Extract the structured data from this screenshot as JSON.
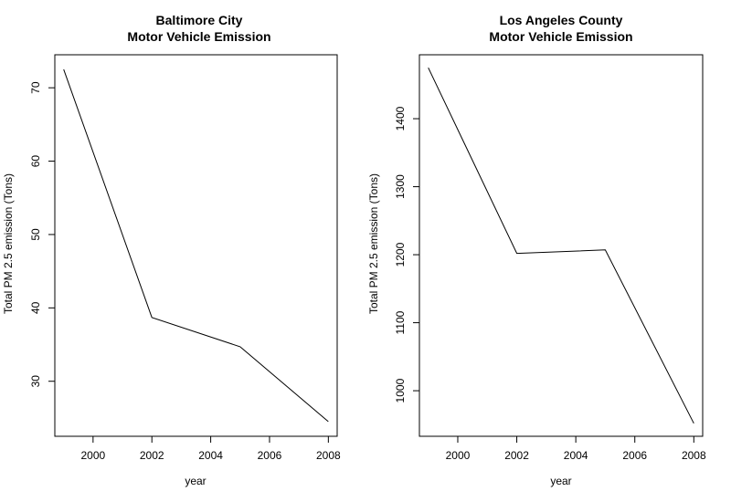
{
  "chart_data": [
    {
      "type": "line",
      "title": "Baltimore City\nMotor Vehicle Emission",
      "xlabel": "year",
      "ylabel": "Total PM 2.5 emission (Tons)",
      "x": [
        1999,
        2002,
        2005,
        2008
      ],
      "series": [
        {
          "values": [
            72.5,
            38.7,
            34.7,
            24.5
          ]
        }
      ],
      "xlim": [
        1998.7,
        2008.3
      ],
      "ylim": [
        22.5,
        74.5
      ],
      "xticks": [
        2000,
        2002,
        2004,
        2006,
        2008
      ],
      "yticks": [
        30,
        40,
        50,
        60,
        70
      ],
      "grid": false
    },
    {
      "type": "line",
      "title": "Los Angeles County\nMotor Vehicle Emission",
      "xlabel": "year",
      "ylabel": "Total PM 2.5 emission (Tons)",
      "x": [
        1999,
        2002,
        2005,
        2008
      ],
      "series": [
        {
          "values": [
            1475,
            1202,
            1207,
            952
          ]
        }
      ],
      "xlim": [
        1998.7,
        2008.3
      ],
      "ylim": [
        933,
        1494
      ],
      "xticks": [
        2000,
        2002,
        2004,
        2006,
        2008
      ],
      "yticks": [
        1000,
        1100,
        1200,
        1300,
        1400
      ],
      "grid": false
    }
  ]
}
